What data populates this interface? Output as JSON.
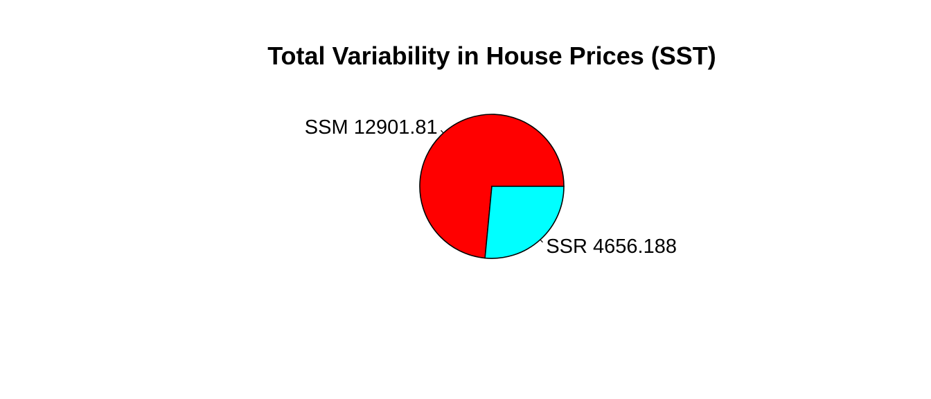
{
  "chart_data": {
    "type": "pie",
    "title": "Total Variability in House Prices (SST)",
    "start_angle_deg": 0,
    "direction": "counterclockwise",
    "slices": [
      {
        "label": "SSM 12901.81",
        "value": 12901.81,
        "color": "#FF0000"
      },
      {
        "label": "SSR 4656.188",
        "value": 4656.188,
        "color": "#00FFFF"
      }
    ]
  }
}
